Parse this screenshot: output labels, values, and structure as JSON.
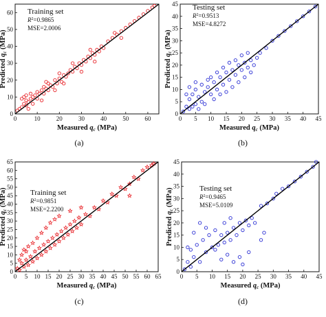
{
  "chart_data": [
    {
      "type": "scatter",
      "caption": "(a)",
      "annotation": [
        "Training set",
        "R²=0.9865",
        "MSE=2.0006"
      ],
      "xlabel": "Measured q_c (MPa)",
      "ylabel": "Predicted q_c (MPa)",
      "xlim": [
        0,
        65
      ],
      "ylim": [
        0,
        65
      ],
      "xticks": [
        0,
        10,
        20,
        30,
        40,
        50,
        60
      ],
      "yticks": [
        0,
        10,
        20,
        30,
        40,
        50,
        60
      ],
      "color": "#e8262b",
      "marker": "circle",
      "fit_line": [
        [
          0,
          0
        ],
        [
          65,
          65
        ]
      ],
      "points": [
        [
          1,
          2
        ],
        [
          2,
          3
        ],
        [
          3,
          4
        ],
        [
          4,
          6
        ],
        [
          5,
          5
        ],
        [
          5,
          8
        ],
        [
          6,
          7
        ],
        [
          7,
          9
        ],
        [
          8,
          10
        ],
        [
          8,
          6
        ],
        [
          9,
          11
        ],
        [
          10,
          9
        ],
        [
          10,
          13
        ],
        [
          11,
          12
        ],
        [
          12,
          14
        ],
        [
          13,
          12
        ],
        [
          13,
          16
        ],
        [
          14,
          15
        ],
        [
          15,
          14
        ],
        [
          15,
          18
        ],
        [
          16,
          17
        ],
        [
          17,
          16
        ],
        [
          18,
          20
        ],
        [
          19,
          18
        ],
        [
          20,
          21
        ],
        [
          21,
          19
        ],
        [
          22,
          23
        ],
        [
          23,
          22
        ],
        [
          24,
          24
        ],
        [
          25,
          26
        ],
        [
          26,
          25
        ],
        [
          27,
          28
        ],
        [
          28,
          27
        ],
        [
          29,
          30
        ],
        [
          30,
          29
        ],
        [
          31,
          32
        ],
        [
          32,
          31
        ],
        [
          33,
          34
        ],
        [
          34,
          33
        ],
        [
          35,
          36
        ],
        [
          36,
          35
        ],
        [
          37,
          38
        ],
        [
          38,
          37
        ],
        [
          39,
          40
        ],
        [
          40,
          39
        ],
        [
          42,
          43
        ],
        [
          44,
          45
        ],
        [
          46,
          47
        ],
        [
          48,
          49
        ],
        [
          50,
          51
        ],
        [
          52,
          53
        ],
        [
          54,
          55
        ],
        [
          56,
          57
        ],
        [
          58,
          59
        ],
        [
          60,
          61
        ],
        [
          62,
          63
        ],
        [
          63,
          64
        ],
        [
          3,
          9
        ],
        [
          4,
          10
        ],
        [
          5,
          11
        ],
        [
          7,
          12
        ],
        [
          6,
          3
        ],
        [
          12,
          8
        ],
        [
          14,
          19
        ],
        [
          18,
          14
        ],
        [
          20,
          24
        ],
        [
          22,
          18
        ],
        [
          26,
          30
        ],
        [
          30,
          25
        ],
        [
          34,
          38
        ],
        [
          36,
          31
        ],
        [
          45,
          48
        ],
        [
          48,
          45
        ]
      ]
    },
    {
      "type": "scatter",
      "caption": "(b)",
      "annotation": [
        "Testing set",
        "R²=0.9513",
        "MSE=4.8272"
      ],
      "xlabel": "Measured q_c (MPa)",
      "ylabel": "Predicted q_c (MPa)",
      "xlim": [
        0,
        45
      ],
      "ylim": [
        0,
        45
      ],
      "xticks": [
        0,
        5,
        10,
        15,
        20,
        25,
        30,
        35,
        40,
        45
      ],
      "yticks": [
        0,
        5,
        10,
        15,
        20,
        25,
        30,
        35,
        40,
        45
      ],
      "color": "#2b2fd4",
      "marker": "circle",
      "fit_line": [
        [
          0,
          0
        ],
        [
          45,
          45
        ]
      ],
      "points": [
        [
          1,
          1
        ],
        [
          2,
          3
        ],
        [
          3,
          2
        ],
        [
          3,
          6
        ],
        [
          4,
          8
        ],
        [
          5,
          4
        ],
        [
          5,
          10
        ],
        [
          6,
          7
        ],
        [
          7,
          12
        ],
        [
          7,
          5
        ],
        [
          8,
          9
        ],
        [
          9,
          14
        ],
        [
          9,
          11
        ],
        [
          10,
          8
        ],
        [
          10,
          15
        ],
        [
          11,
          13
        ],
        [
          12,
          10
        ],
        [
          12,
          17
        ],
        [
          13,
          15
        ],
        [
          14,
          12
        ],
        [
          14,
          19
        ],
        [
          15,
          17
        ],
        [
          16,
          14
        ],
        [
          16,
          21
        ],
        [
          17,
          18
        ],
        [
          18,
          16
        ],
        [
          18,
          22
        ],
        [
          19,
          20
        ],
        [
          20,
          18
        ],
        [
          20,
          24
        ],
        [
          21,
          21
        ],
        [
          22,
          19
        ],
        [
          22,
          25
        ],
        [
          23,
          22
        ],
        [
          24,
          20
        ],
        [
          25,
          23
        ],
        [
          26,
          25
        ],
        [
          28,
          27
        ],
        [
          30,
          30
        ],
        [
          32,
          32
        ],
        [
          34,
          34
        ],
        [
          36,
          36
        ],
        [
          38,
          38
        ],
        [
          40,
          40
        ],
        [
          42,
          42
        ],
        [
          44,
          44
        ],
        [
          4,
          3
        ],
        [
          6,
          2
        ],
        [
          8,
          4
        ],
        [
          11,
          6
        ],
        [
          13,
          8
        ],
        [
          15,
          9
        ],
        [
          17,
          11
        ],
        [
          19,
          13
        ],
        [
          21,
          15
        ],
        [
          23,
          17
        ],
        [
          2,
          8
        ],
        [
          3,
          11
        ],
        [
          5,
          13
        ]
      ]
    },
    {
      "type": "scatter",
      "caption": "(c)",
      "annotation": [
        "Training set",
        "R²=0.9851",
        "MSE=2.2200"
      ],
      "xlabel": "Measured q_c (MPa)",
      "ylabel": "Predicted q_c (MPa)",
      "xlim": [
        0,
        65
      ],
      "ylim": [
        0,
        65
      ],
      "xticks": [
        0,
        5,
        10,
        15,
        20,
        25,
        30,
        35,
        40,
        45,
        50,
        55,
        60,
        65
      ],
      "yticks": [
        0,
        5,
        10,
        15,
        20,
        25,
        30,
        35,
        40,
        45,
        50,
        55,
        60,
        65
      ],
      "color": "#e8262b",
      "marker": "star",
      "fit_line": [
        [
          0,
          0
        ],
        [
          65,
          65
        ]
      ],
      "points": [
        [
          1,
          2
        ],
        [
          2,
          1
        ],
        [
          3,
          5
        ],
        [
          4,
          3
        ],
        [
          5,
          7
        ],
        [
          6,
          4
        ],
        [
          7,
          9
        ],
        [
          8,
          6
        ],
        [
          9,
          12
        ],
        [
          10,
          8
        ],
        [
          11,
          14
        ],
        [
          12,
          10
        ],
        [
          13,
          16
        ],
        [
          14,
          12
        ],
        [
          15,
          18
        ],
        [
          16,
          14
        ],
        [
          17,
          20
        ],
        [
          18,
          16
        ],
        [
          19,
          22
        ],
        [
          20,
          18
        ],
        [
          21,
          24
        ],
        [
          22,
          20
        ],
        [
          23,
          26
        ],
        [
          24,
          22
        ],
        [
          25,
          28
        ],
        [
          26,
          24
        ],
        [
          27,
          30
        ],
        [
          28,
          26
        ],
        [
          29,
          32
        ],
        [
          30,
          28
        ],
        [
          32,
          34
        ],
        [
          34,
          33
        ],
        [
          36,
          38
        ],
        [
          38,
          37
        ],
        [
          40,
          42
        ],
        [
          42,
          41
        ],
        [
          44,
          46
        ],
        [
          46,
          45
        ],
        [
          48,
          50
        ],
        [
          50,
          49
        ],
        [
          52,
          45
        ],
        [
          52,
          52
        ],
        [
          54,
          56
        ],
        [
          56,
          55
        ],
        [
          58,
          60
        ],
        [
          60,
          62
        ],
        [
          62,
          63
        ],
        [
          63,
          64
        ],
        [
          2,
          7
        ],
        [
          3,
          10
        ],
        [
          4,
          13
        ],
        [
          5,
          12
        ],
        [
          6,
          15
        ],
        [
          8,
          17
        ],
        [
          10,
          20
        ],
        [
          12,
          23
        ],
        [
          14,
          26
        ],
        [
          16,
          29
        ],
        [
          18,
          31
        ],
        [
          20,
          33
        ],
        [
          25,
          36
        ],
        [
          30,
          38
        ]
      ]
    },
    {
      "type": "scatter",
      "caption": "(d)",
      "annotation": [
        "Testing set",
        "R²=0.9465",
        "MSE=5.0109"
      ],
      "xlabel": "Measured q_c (MPa)",
      "ylabel": "Predicted q_c (MPa)",
      "xlim": [
        0,
        45
      ],
      "ylim": [
        0,
        45
      ],
      "xticks": [
        0,
        5,
        10,
        15,
        20,
        25,
        30,
        35,
        40,
        45
      ],
      "yticks": [
        0,
        5,
        10,
        15,
        20,
        25,
        30,
        35,
        40,
        45
      ],
      "color": "#2b2fd4",
      "marker": "circle",
      "fit_line": [
        [
          0,
          0
        ],
        [
          45,
          45
        ]
      ],
      "points": [
        [
          1,
          1
        ],
        [
          2,
          4
        ],
        [
          3,
          2
        ],
        [
          3,
          9
        ],
        [
          4,
          6
        ],
        [
          5,
          11
        ],
        [
          6,
          4
        ],
        [
          7,
          13
        ],
        [
          8,
          8
        ],
        [
          9,
          15
        ],
        [
          10,
          10
        ],
        [
          11,
          17
        ],
        [
          12,
          11
        ],
        [
          13,
          15
        ],
        [
          14,
          12
        ],
        [
          14,
          20
        ],
        [
          15,
          16
        ],
        [
          16,
          13
        ],
        [
          16,
          22
        ],
        [
          17,
          18
        ],
        [
          18,
          15
        ],
        [
          19,
          20
        ],
        [
          20,
          17
        ],
        [
          21,
          21
        ],
        [
          22,
          19
        ],
        [
          23,
          22
        ],
        [
          24,
          20
        ],
        [
          26,
          27
        ],
        [
          28,
          28
        ],
        [
          30,
          30
        ],
        [
          31,
          32
        ],
        [
          33,
          34
        ],
        [
          35,
          35
        ],
        [
          37,
          37
        ],
        [
          39,
          39
        ],
        [
          41,
          41
        ],
        [
          43,
          43
        ],
        [
          44,
          45
        ],
        [
          2,
          10
        ],
        [
          4,
          16
        ],
        [
          6,
          20
        ],
        [
          8,
          18
        ],
        [
          17,
          4
        ],
        [
          19,
          6
        ],
        [
          20,
          3
        ],
        [
          22,
          8
        ],
        [
          15,
          7
        ],
        [
          13,
          5
        ],
        [
          11,
          9
        ],
        [
          26,
          13
        ],
        [
          27,
          16
        ]
      ]
    }
  ]
}
